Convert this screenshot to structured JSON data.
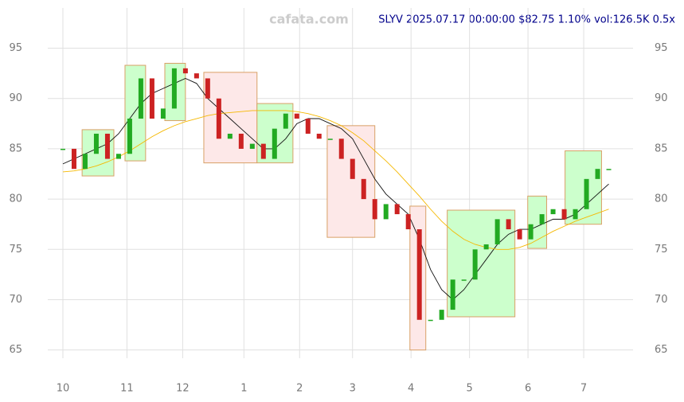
{
  "chart_data": {
    "type": "candlestick",
    "title": "SLYV 2025.07.17 00:00:00 $82.75 1.10% vol:126.5K 0.5x",
    "watermark": "cafata.com",
    "x": [
      0,
      4,
      8,
      12,
      16,
      20,
      24,
      28,
      32,
      36,
      40,
      44,
      48,
      52,
      56,
      60,
      64,
      68,
      72,
      76,
      80,
      84,
      88,
      92,
      96,
      100,
      104,
      108,
      112,
      116,
      120,
      124,
      128,
      132,
      136,
      140,
      144,
      148,
      152,
      156,
      160,
      164,
      168,
      172,
      176,
      180,
      184,
      188,
      192,
      196
    ],
    "series": [
      {
        "name": "SLYV",
        "up_color": "#22aa22",
        "down_color": "#cc2222",
        "values": [
          85,
          83,
          84.5,
          86.5,
          84,
          84.5,
          88,
          92,
          88,
          89,
          93,
          92.5,
          92,
          90,
          86,
          86.5,
          85,
          85.5,
          84,
          87,
          88.5,
          88,
          86.5,
          86,
          86,
          84,
          82,
          80,
          78,
          79.5,
          78.5,
          77,
          68,
          68,
          69,
          72,
          72,
          75,
          75.5,
          78,
          77,
          76,
          77.5,
          78.5,
          79,
          78,
          79,
          82,
          83,
          83
        ]
      }
    ],
    "lines": [
      {
        "color": "#111111",
        "values": [
          83.5,
          84,
          84.5,
          85,
          85.5,
          86.5,
          88,
          89.5,
          90.5,
          91,
          91.5,
          92,
          91.5,
          90,
          89,
          88,
          87,
          86,
          85,
          85,
          86,
          87.5,
          88,
          88,
          87.5,
          87,
          86,
          84,
          82,
          80.5,
          79.5,
          78.5,
          76,
          73,
          71,
          70,
          71,
          72.5,
          74,
          75.5,
          76.5,
          77,
          77,
          77.5,
          78,
          78,
          78.5,
          79.5,
          80.5,
          81.5
        ]
      },
      {
        "color": "#f5b800",
        "values": [
          82.7,
          82.8,
          83,
          83.3,
          83.7,
          84.2,
          84.8,
          85.5,
          86.2,
          86.8,
          87.3,
          87.7,
          88,
          88.3,
          88.5,
          88.6,
          88.7,
          88.8,
          88.8,
          88.8,
          88.8,
          88.7,
          88.5,
          88.2,
          87.8,
          87.3,
          86.6,
          85.8,
          84.8,
          83.8,
          82.7,
          81.5,
          80.3,
          79,
          77.8,
          76.8,
          76,
          75.5,
          75.2,
          75,
          75,
          75.2,
          75.6,
          76.2,
          76.8,
          77.3,
          77.8,
          78.2,
          78.6,
          79
        ]
      }
    ],
    "boxes": [
      {
        "x": [
          6.9,
          18.3
        ],
        "y": [
          82.3,
          86.9
        ],
        "color": "#ccffcc"
      },
      {
        "x": [
          22.3,
          29.7
        ],
        "y": [
          83.8,
          93.3
        ],
        "color": "#ccffcc"
      },
      {
        "x": [
          36.6,
          44
        ],
        "y": [
          87.8,
          93.5
        ],
        "color": "#ccffcc"
      },
      {
        "x": [
          50.6,
          69.7
        ],
        "y": [
          83.6,
          92.6
        ],
        "color": "#fde8e8"
      },
      {
        "x": [
          69.7,
          82.6
        ],
        "y": [
          83.6,
          89.5
        ],
        "color": "#ccffcc"
      },
      {
        "x": [
          94.9,
          112
        ],
        "y": [
          76.2,
          87.3
        ],
        "color": "#fde8e8"
      },
      {
        "x": [
          124.6,
          130.3
        ],
        "y": [
          65,
          79.3
        ],
        "color": "#fde8e8"
      },
      {
        "x": [
          138,
          162.3
        ],
        "y": [
          68.3,
          78.9
        ],
        "color": "#ccffcc"
      },
      {
        "x": [
          166.9,
          173.7
        ],
        "y": [
          75.1,
          80.3
        ],
        "color": "#ccffcc"
      },
      {
        "x": [
          180.3,
          193.4
        ],
        "y": [
          77.5,
          84.8
        ],
        "color": "#ccffcc"
      }
    ],
    "xlim": [
      -10,
      209
    ],
    "ylim": [
      62.6,
      99
    ],
    "xticks": [
      {
        "value": 0,
        "label": "10"
      },
      {
        "value": 23,
        "label": "11"
      },
      {
        "value": 43,
        "label": "12"
      },
      {
        "value": 65,
        "label": "1"
      },
      {
        "value": 85,
        "label": "2"
      },
      {
        "value": 104,
        "label": "3"
      },
      {
        "value": 125,
        "label": "4"
      },
      {
        "value": 146,
        "label": "5"
      },
      {
        "value": 167,
        "label": "6"
      },
      {
        "value": 187,
        "label": "7"
      }
    ],
    "yticks": [
      65,
      70,
      75,
      80,
      85,
      90,
      95
    ],
    "grid": true
  }
}
